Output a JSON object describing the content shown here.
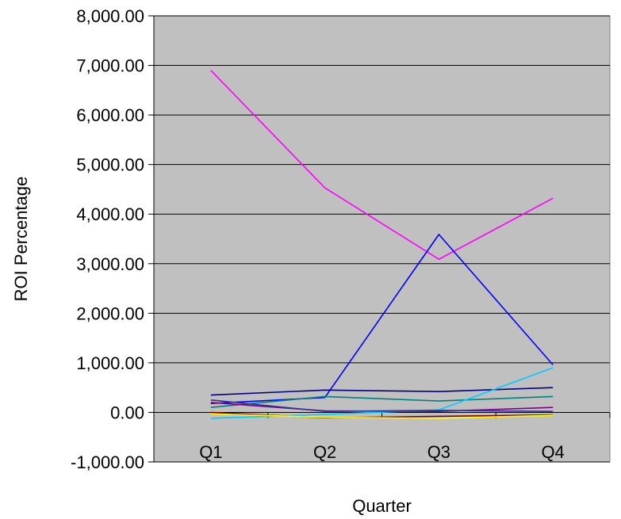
{
  "chart_data": {
    "type": "line",
    "title": "",
    "xlabel": "Quarter",
    "ylabel": "ROI Percentage",
    "categories": [
      "Q1",
      "Q2",
      "Q3",
      "Q4"
    ],
    "ylim": [
      -1000,
      8000
    ],
    "yticks": [
      "-1,000.00",
      "0.00",
      "1,000.00",
      "2,000.00",
      "3,000.00",
      "4,000.00",
      "5,000.00",
      "6,000.00",
      "7,000.00",
      "8,000.00"
    ],
    "ytick_values": [
      -1000,
      0,
      1000,
      2000,
      3000,
      4000,
      5000,
      6000,
      7000,
      8000
    ],
    "grid": true,
    "plot_background": "#c0c0c0",
    "legend": "none",
    "series": [
      {
        "color": "#ff00ff",
        "values": [
          6900,
          4530,
          3090,
          4320
        ]
      },
      {
        "color": "#0000ff",
        "values": [
          180,
          300,
          3590,
          960
        ]
      },
      {
        "color": "#000080",
        "values": [
          350,
          450,
          420,
          500
        ]
      },
      {
        "color": "#008080",
        "values": [
          100,
          320,
          230,
          320
        ]
      },
      {
        "color": "#00ccff",
        "values": [
          -120,
          -40,
          50,
          900
        ]
      },
      {
        "color": "#800080",
        "values": [
          200,
          30,
          20,
          100
        ]
      },
      {
        "color": "#800000",
        "values": [
          0,
          -110,
          -80,
          -50
        ]
      },
      {
        "color": "#ffff00",
        "values": [
          -30,
          -100,
          -120,
          -60
        ]
      },
      {
        "color": "#333399",
        "values": [
          250,
          20,
          40,
          20
        ]
      }
    ]
  }
}
